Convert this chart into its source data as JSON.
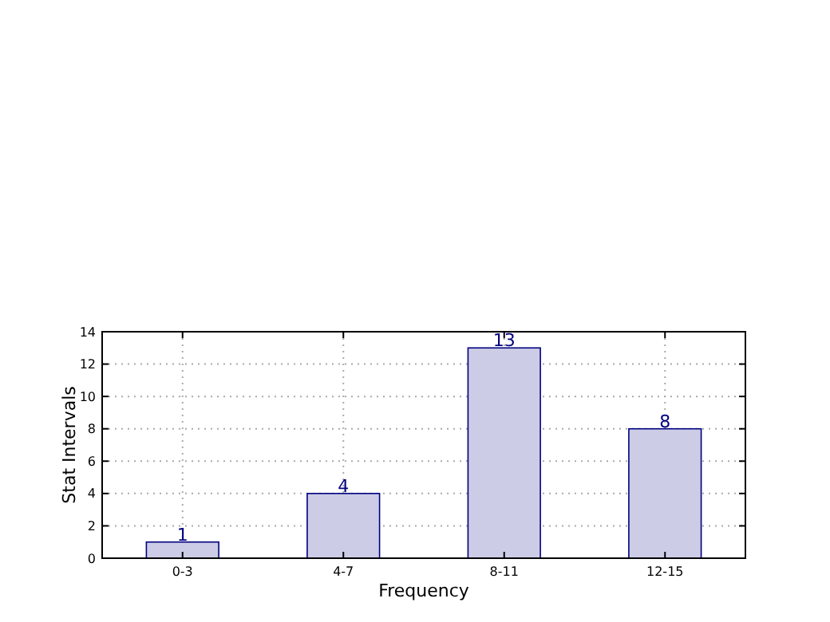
{
  "chart_data": {
    "type": "bar",
    "xlabel": "Frequency",
    "ylabel": "Stat Intervals",
    "categories": [
      "0-3",
      "4-7",
      "8-11",
      "12-15"
    ],
    "values": [
      1,
      4,
      13,
      8
    ],
    "color": "#ccccE6",
    "ylim": [
      0,
      14
    ],
    "yticks": [
      0,
      2,
      4,
      6,
      8,
      10,
      12,
      14
    ],
    "grid": true,
    "data_labels": true
  }
}
